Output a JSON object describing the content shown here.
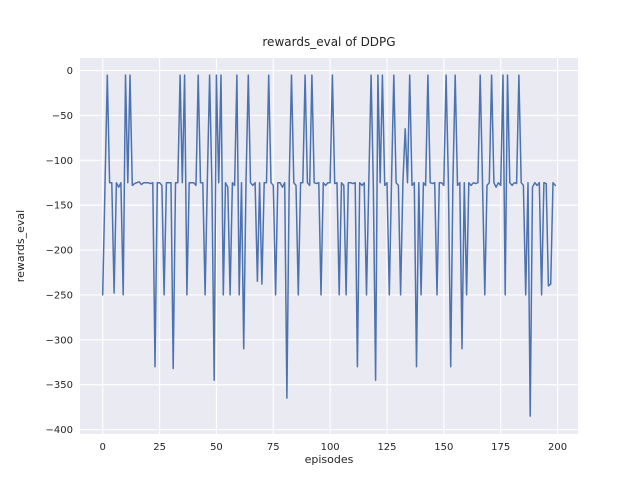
{
  "figure": {
    "background": "#ffffff",
    "plot_background": "#eaeaf2",
    "grid_color": "#ffffff",
    "text_color": "#262626"
  },
  "chart_data": {
    "type": "line",
    "title": "rewards_eval of DDPG",
    "xlabel": "episodes",
    "ylabel": "rewards_eval",
    "line_color": "#4c72b0",
    "line_width": 1.5,
    "grid": true,
    "legend": "none",
    "xlim": [
      -10,
      209
    ],
    "ylim": [
      -405,
      14
    ],
    "xticks": [
      0,
      25,
      50,
      75,
      100,
      125,
      150,
      175,
      200
    ],
    "yticks": [
      0,
      -50,
      -100,
      -150,
      -200,
      -250,
      -300,
      -350,
      -400
    ],
    "x_is_index": true,
    "values": [
      -250,
      -128,
      -5,
      -125,
      -125,
      -248,
      -125,
      -130,
      -125,
      -250,
      -5,
      -125,
      -5,
      -128,
      -126,
      -125,
      -124,
      -127,
      -125,
      -125,
      -125,
      -126,
      -125,
      -330,
      -125,
      -125,
      -128,
      -250,
      -125,
      -125,
      -125,
      -332,
      -125,
      -125,
      -5,
      -125,
      -5,
      -250,
      -125,
      -125,
      -125,
      -128,
      -5,
      -125,
      -125,
      -250,
      -125,
      -5,
      -128,
      -345,
      -5,
      -125,
      -5,
      -250,
      -125,
      -130,
      -250,
      -125,
      -128,
      -5,
      -250,
      -125,
      -310,
      -125,
      -5,
      -125,
      -128,
      -125,
      -235,
      -125,
      -238,
      -125,
      -125,
      -5,
      -125,
      -128,
      -250,
      -125,
      -125,
      -130,
      -125,
      -365,
      -125,
      -5,
      -125,
      -128,
      -250,
      -125,
      -125,
      -5,
      -125,
      -128,
      -5,
      -125,
      -126,
      -125,
      -250,
      -125,
      -128,
      -125,
      -125,
      -5,
      -126,
      -125,
      -250,
      -125,
      -128,
      -250,
      -125,
      -125,
      -126,
      -125,
      -330,
      -125,
      -128,
      -125,
      -250,
      -125,
      -5,
      -126,
      -345,
      -5,
      -125,
      -5,
      -128,
      -125,
      -250,
      -125,
      -5,
      -125,
      -128,
      -250,
      -125,
      -65,
      -125,
      -5,
      -128,
      -125,
      -330,
      -125,
      -250,
      -125,
      -128,
      -5,
      -125,
      -126,
      -125,
      -250,
      -125,
      -125,
      -128,
      -5,
      -125,
      -330,
      -125,
      -5,
      -128,
      -125,
      -310,
      -125,
      -250,
      -125,
      -128,
      -125,
      -126,
      -125,
      -5,
      -125,
      -250,
      -128,
      -125,
      -5,
      -125,
      -130,
      -125,
      -128,
      -5,
      -250,
      -5,
      -125,
      -128,
      -125,
      -126,
      -5,
      -125,
      -128,
      -250,
      -125,
      -385,
      -130,
      -125,
      -128,
      -125,
      -250,
      -125,
      -126,
      -240,
      -238,
      -125,
      -128
    ]
  }
}
